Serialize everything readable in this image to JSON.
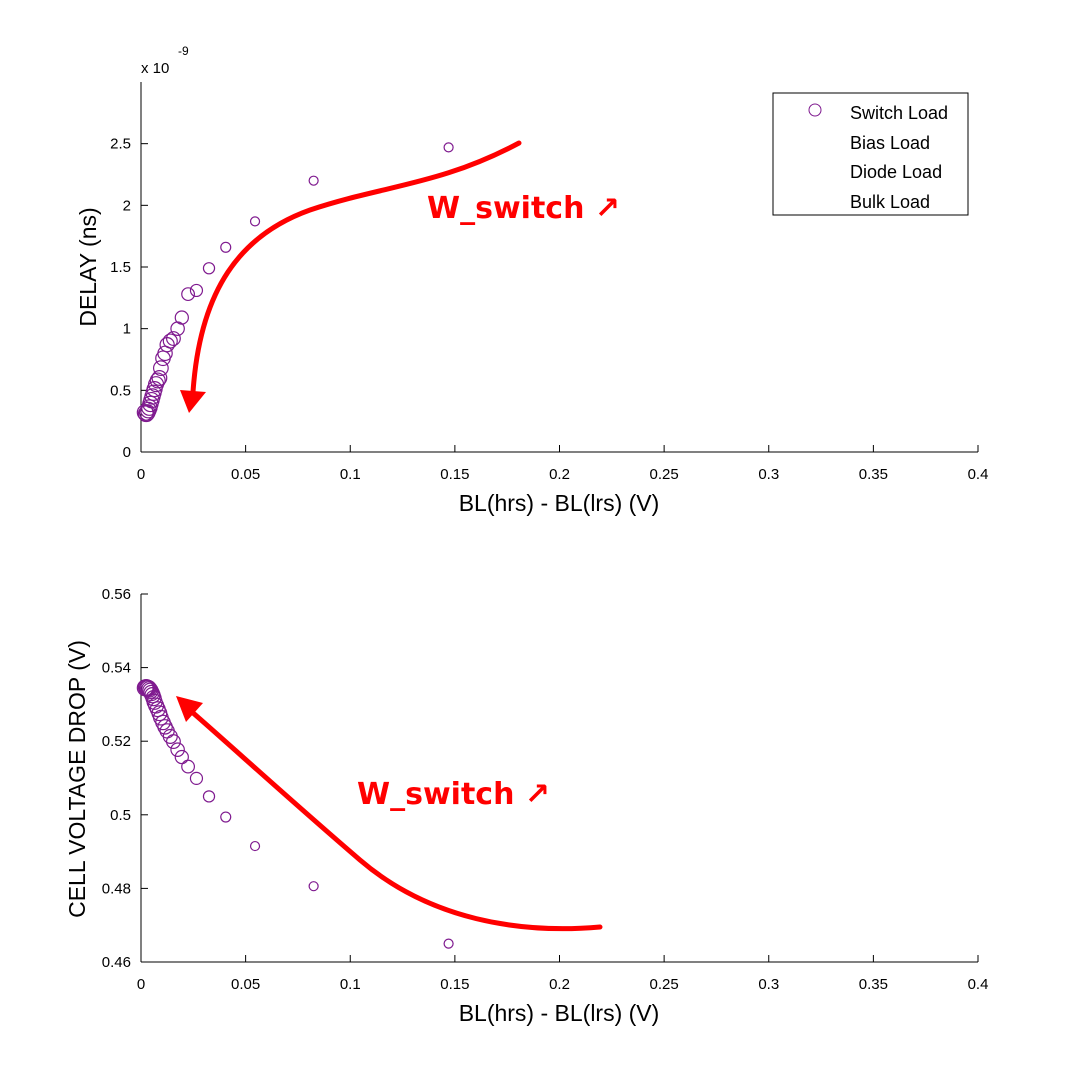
{
  "chart_data": [
    {
      "type": "scatter",
      "xlabel": "BL(hrs) - BL(lrs) (V)",
      "ylabel": "DELAY (ns)",
      "xlim": [
        0,
        0.4
      ],
      "ylim": [
        0,
        3.0
      ],
      "x_ticks": [
        "0",
        "0.05",
        "0.1",
        "0.15",
        "0.2",
        "0.25",
        "0.3",
        "0.35",
        "0.4"
      ],
      "y_ticks": [
        "0",
        "0.5",
        "1",
        "1.5",
        "2",
        "2.5"
      ],
      "y_multiplier": "x 10",
      "y_exponent": "-9",
      "legend": {
        "position": "top-right",
        "entries": [
          "Switch Load",
          "Bias Load",
          "Diode Load",
          "Bulk Load"
        ]
      },
      "series": [
        {
          "name": "Switch Load",
          "color": "#7f1a8f",
          "marker": "open-circle",
          "points": [
            [
              0.147,
              2.47
            ],
            [
              0.0825,
              2.2
            ],
            [
              0.0545,
              1.87
            ],
            [
              0.0405,
              1.66
            ],
            [
              0.0325,
              1.49
            ],
            [
              0.0265,
              1.31
            ],
            [
              0.0225,
              1.28
            ],
            [
              0.0195,
              1.09
            ],
            [
              0.0175,
              1.0
            ],
            [
              0.0155,
              0.92
            ],
            [
              0.014,
              0.9
            ],
            [
              0.0125,
              0.87
            ],
            [
              0.0115,
              0.8
            ],
            [
              0.0105,
              0.76
            ],
            [
              0.0095,
              0.68
            ],
            [
              0.0088,
              0.6
            ],
            [
              0.008,
              0.58
            ],
            [
              0.0072,
              0.55
            ],
            [
              0.0065,
              0.51
            ],
            [
              0.006,
              0.48
            ],
            [
              0.0055,
              0.45
            ],
            [
              0.005,
              0.42
            ],
            [
              0.0045,
              0.39
            ],
            [
              0.004,
              0.36
            ],
            [
              0.0035,
              0.34
            ],
            [
              0.003,
              0.32
            ],
            [
              0.0025,
              0.31
            ],
            [
              0.002,
              0.32
            ]
          ]
        }
      ],
      "annotation": {
        "text": "W_switch ↗",
        "color": "#ff0000",
        "arrow": "curved, pointing down-left"
      }
    },
    {
      "type": "scatter",
      "xlabel": "BL(hrs) - BL(lrs) (V)",
      "ylabel": "CELL VOLTAGE DROP (V)",
      "xlim": [
        0,
        0.4
      ],
      "ylim": [
        0.46,
        0.56
      ],
      "x_ticks": [
        "0",
        "0.05",
        "0.1",
        "0.15",
        "0.2",
        "0.25",
        "0.3",
        "0.35",
        "0.4"
      ],
      "y_ticks": [
        "0.46",
        "0.48",
        "0.5",
        "0.52",
        "0.54",
        "0.56"
      ],
      "series": [
        {
          "name": "Switch Load",
          "color": "#7f1a8f",
          "marker": "open-circle",
          "points": [
            [
              0.147,
              0.465
            ],
            [
              0.0825,
              0.4806
            ],
            [
              0.0545,
              0.4915
            ],
            [
              0.0405,
              0.4994
            ],
            [
              0.0325,
              0.505
            ],
            [
              0.0265,
              0.5099
            ],
            [
              0.0225,
              0.5131
            ],
            [
              0.0195,
              0.5157
            ],
            [
              0.0175,
              0.5177
            ],
            [
              0.0155,
              0.5199
            ],
            [
              0.014,
              0.5213
            ],
            [
              0.0125,
              0.5228
            ],
            [
              0.0115,
              0.5239
            ],
            [
              0.0105,
              0.5251
            ],
            [
              0.0095,
              0.5264
            ],
            [
              0.0088,
              0.5276
            ],
            [
              0.008,
              0.5287
            ],
            [
              0.0072,
              0.5297
            ],
            [
              0.0065,
              0.5307
            ],
            [
              0.006,
              0.5317
            ],
            [
              0.0055,
              0.5325
            ],
            [
              0.005,
              0.5331
            ],
            [
              0.0045,
              0.5337
            ],
            [
              0.004,
              0.5341
            ],
            [
              0.0035,
              0.5344
            ],
            [
              0.003,
              0.5345
            ],
            [
              0.0025,
              0.5346
            ],
            [
              0.002,
              0.5345
            ]
          ]
        }
      ],
      "annotation": {
        "text": "W_switch ↗",
        "color": "#ff0000",
        "arrow": "curved, pointing up-left"
      }
    }
  ]
}
